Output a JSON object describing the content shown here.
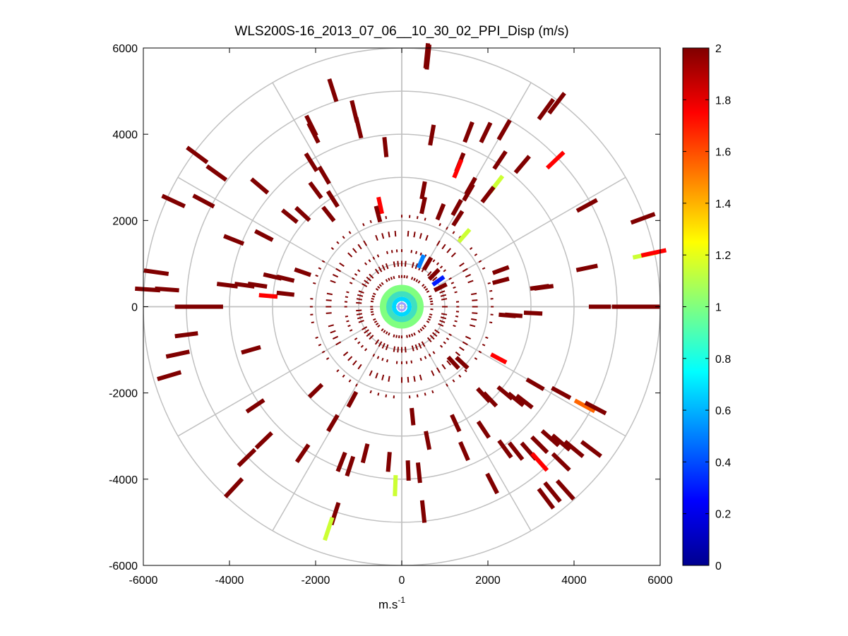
{
  "chart_data": {
    "type": "polar-scatter",
    "title": "WLS200S-16_2013_07_06__10_30_02_PPI_Disp (m/s)",
    "xlabel": "m.s",
    "xlabel_superscript": "-1",
    "ylabel": "",
    "xlim": [
      -6000,
      6000
    ],
    "ylim": [
      -6000,
      6000
    ],
    "xticks": [
      -6000,
      -4000,
      -2000,
      0,
      2000,
      4000,
      6000
    ],
    "yticks": [
      -6000,
      -4000,
      -2000,
      0,
      2000,
      4000,
      6000
    ],
    "xtick_labels": [
      "-6000",
      "-4000",
      "-2000",
      "0",
      "2000",
      "4000",
      "6000"
    ],
    "ytick_labels": [
      "-6000",
      "-4000",
      "-2000",
      "0",
      "2000",
      "4000",
      "6000"
    ],
    "polar_rings": [
      1000,
      2000,
      3000,
      4000,
      5000,
      6000
    ],
    "polar_spoke_angles_deg": [
      0,
      30,
      60,
      90,
      120,
      150,
      180,
      210,
      240,
      270,
      300,
      330
    ],
    "colorbar": {
      "colormap": "jet",
      "min": 0,
      "max": 2,
      "ticks": [
        0,
        0.2,
        0.4,
        0.6,
        0.8,
        1,
        1.2,
        1.4,
        1.6,
        1.8,
        2
      ],
      "tick_labels": [
        "0",
        "0.2",
        "0.4",
        "0.6",
        "0.8",
        "1",
        "1.2",
        "1.4",
        "1.6",
        "1.8",
        "2"
      ]
    },
    "points": [
      {
        "x": 580,
        "y": 5820,
        "v": 2
      },
      {
        "x": 610,
        "y": 5790,
        "v": 2
      },
      {
        "x": -1600,
        "y": 5020,
        "v": 2
      },
      {
        "x": -2100,
        "y": 4200,
        "v": 2
      },
      {
        "x": -2050,
        "y": 4030,
        "v": 2
      },
      {
        "x": -1100,
        "y": 4530,
        "v": 2
      },
      {
        "x": -1000,
        "y": 4150,
        "v": 2
      },
      {
        "x": -380,
        "y": 3700,
        "v": 2
      },
      {
        "x": 700,
        "y": 3980,
        "v": 2
      },
      {
        "x": 1550,
        "y": 4050,
        "v": 2
      },
      {
        "x": 1950,
        "y": 4040,
        "v": 2
      },
      {
        "x": 2380,
        "y": 4100,
        "v": 2
      },
      {
        "x": 3350,
        "y": 4580,
        "v": 2
      },
      {
        "x": 3600,
        "y": 4720,
        "v": 2
      },
      {
        "x": 3570,
        "y": 3400,
        "v": 1.75
      },
      {
        "x": 2800,
        "y": 3300,
        "v": 2
      },
      {
        "x": 2280,
        "y": 3400,
        "v": 2
      },
      {
        "x": 1350,
        "y": 3350,
        "v": 2
      },
      {
        "x": 1300,
        "y": 3200,
        "v": 1.75
      },
      {
        "x": 2200,
        "y": 2850,
        "v": 1.15
      },
      {
        "x": 1550,
        "y": 2650,
        "v": 2
      },
      {
        "x": 1600,
        "y": 2800,
        "v": 2
      },
      {
        "x": 2000,
        "y": 2600,
        "v": 2
      },
      {
        "x": -4750,
        "y": 3520,
        "v": 2
      },
      {
        "x": -4300,
        "y": 3100,
        "v": 2
      },
      {
        "x": -3300,
        "y": 2800,
        "v": 2
      },
      {
        "x": -2100,
        "y": 3350,
        "v": 2
      },
      {
        "x": -1800,
        "y": 3050,
        "v": 2
      },
      {
        "x": -5300,
        "y": 2450,
        "v": 2
      },
      {
        "x": -4600,
        "y": 2450,
        "v": 2
      },
      {
        "x": -3900,
        "y": 1550,
        "v": 2
      },
      {
        "x": -3200,
        "y": 1650,
        "v": 2
      },
      {
        "x": -2600,
        "y": 2100,
        "v": 2
      },
      {
        "x": -2300,
        "y": 2150,
        "v": 2
      },
      {
        "x": -2000,
        "y": 2700,
        "v": 2
      },
      {
        "x": -1600,
        "y": 2500,
        "v": 2
      },
      {
        "x": -1700,
        "y": 2150,
        "v": 2
      },
      {
        "x": -500,
        "y": 2350,
        "v": 1.75
      },
      {
        "x": -550,
        "y": 2150,
        "v": 2
      },
      {
        "x": 500,
        "y": 2700,
        "v": 2
      },
      {
        "x": 500,
        "y": 2350,
        "v": 2
      },
      {
        "x": 900,
        "y": 2200,
        "v": 2
      },
      {
        "x": 1280,
        "y": 2300,
        "v": 2
      },
      {
        "x": 1300,
        "y": 2050,
        "v": 2
      },
      {
        "x": 1450,
        "y": 1650,
        "v": 1.15
      },
      {
        "x": 4300,
        "y": 2350,
        "v": 2
      },
      {
        "x": 5600,
        "y": 2050,
        "v": 2
      },
      {
        "x": 5650,
        "y": 1200,
        "v": 1.15
      },
      {
        "x": 5850,
        "y": 1250,
        "v": 1.75
      },
      {
        "x": -5700,
        "y": 800,
        "v": 2
      },
      {
        "x": -5900,
        "y": 400,
        "v": 2
      },
      {
        "x": -5450,
        "y": 400,
        "v": 2
      },
      {
        "x": -4050,
        "y": 500,
        "v": 2
      },
      {
        "x": -3650,
        "y": 500,
        "v": 2
      },
      {
        "x": -3350,
        "y": 500,
        "v": 2
      },
      {
        "x": -3000,
        "y": 700,
        "v": 2
      },
      {
        "x": -3100,
        "y": 250,
        "v": 1.75
      },
      {
        "x": -2700,
        "y": 650,
        "v": 2
      },
      {
        "x": -2700,
        "y": 300,
        "v": 2
      },
      {
        "x": -2300,
        "y": 800,
        "v": 2
      },
      {
        "x": -5000,
        "y": 0,
        "v": 2
      },
      {
        "x": -4650,
        "y": 0,
        "v": 2
      },
      {
        "x": -4400,
        "y": 0,
        "v": 2
      },
      {
        "x": 2300,
        "y": 600,
        "v": 2
      },
      {
        "x": 2300,
        "y": 850,
        "v": 2
      },
      {
        "x": 3200,
        "y": 450,
        "v": 2
      },
      {
        "x": 3300,
        "y": 450,
        "v": 2
      },
      {
        "x": 4300,
        "y": 900,
        "v": 2
      },
      {
        "x": 4600,
        "y": 0,
        "v": 2
      },
      {
        "x": 5150,
        "y": 0,
        "v": 2
      },
      {
        "x": 5700,
        "y": 0,
        "v": 2
      },
      {
        "x": 2450,
        "y": -200,
        "v": 2
      },
      {
        "x": 2600,
        "y": -200,
        "v": 2
      },
      {
        "x": 3050,
        "y": -150,
        "v": 2
      },
      {
        "x": -5400,
        "y": -1600,
        "v": 2
      },
      {
        "x": -5000,
        "y": -650,
        "v": 2
      },
      {
        "x": -5200,
        "y": -1100,
        "v": 2
      },
      {
        "x": -3500,
        "y": -1000,
        "v": 2
      },
      {
        "x": -2000,
        "y": -1950,
        "v": 2
      },
      {
        "x": -1150,
        "y": -2150,
        "v": 2
      },
      {
        "x": -3400,
        "y": -2300,
        "v": 2
      },
      {
        "x": -3200,
        "y": -3100,
        "v": 2
      },
      {
        "x": -3600,
        "y": -3500,
        "v": 2
      },
      {
        "x": -2300,
        "y": -3400,
        "v": 2
      },
      {
        "x": -3900,
        "y": -4200,
        "v": 2
      },
      {
        "x": -1600,
        "y": -2700,
        "v": 2
      },
      {
        "x": -1400,
        "y": -3600,
        "v": 2
      },
      {
        "x": -1200,
        "y": -3700,
        "v": 2
      },
      {
        "x": -850,
        "y": -3400,
        "v": 2
      },
      {
        "x": -300,
        "y": -3600,
        "v": 2
      },
      {
        "x": 150,
        "y": -3800,
        "v": 2
      },
      {
        "x": 400,
        "y": -3850,
        "v": 2
      },
      {
        "x": 250,
        "y": -2550,
        "v": 2
      },
      {
        "x": 600,
        "y": -3100,
        "v": 2
      },
      {
        "x": 1250,
        "y": -2700,
        "v": 2
      },
      {
        "x": 1450,
        "y": -3350,
        "v": 2
      },
      {
        "x": 1900,
        "y": -2850,
        "v": 2
      },
      {
        "x": 2100,
        "y": -4100,
        "v": 2
      },
      {
        "x": -150,
        "y": -4150,
        "v": 1.15
      },
      {
        "x": -1550,
        "y": -4800,
        "v": 2
      },
      {
        "x": -1700,
        "y": -5150,
        "v": 1.15
      },
      {
        "x": 500,
        "y": -4750,
        "v": 2
      },
      {
        "x": 1900,
        "y": -2050,
        "v": 2
      },
      {
        "x": 2050,
        "y": -2150,
        "v": 2
      },
      {
        "x": 2400,
        "y": -2000,
        "v": 2
      },
      {
        "x": 2650,
        "y": -2150,
        "v": 2
      },
      {
        "x": 2850,
        "y": -2200,
        "v": 2
      },
      {
        "x": 3100,
        "y": -1800,
        "v": 2
      },
      {
        "x": 2400,
        "y": -3300,
        "v": 2
      },
      {
        "x": 2650,
        "y": -3350,
        "v": 2
      },
      {
        "x": 2950,
        "y": -3350,
        "v": 2
      },
      {
        "x": 3200,
        "y": -3200,
        "v": 2
      },
      {
        "x": 3450,
        "y": -3050,
        "v": 2
      },
      {
        "x": 3700,
        "y": -3150,
        "v": 2
      },
      {
        "x": 3700,
        "y": -3600,
        "v": 2
      },
      {
        "x": 4000,
        "y": -3300,
        "v": 2
      },
      {
        "x": 4400,
        "y": -3300,
        "v": 2
      },
      {
        "x": 3200,
        "y": -3600,
        "v": 1.75
      },
      {
        "x": 3500,
        "y": -4300,
        "v": 2
      },
      {
        "x": 3800,
        "y": -4250,
        "v": 2
      },
      {
        "x": 3350,
        "y": -4450,
        "v": 2
      },
      {
        "x": 3700,
        "y": -2000,
        "v": 2
      },
      {
        "x": 4250,
        "y": -2300,
        "v": 1.55
      },
      {
        "x": 4500,
        "y": -2350,
        "v": 2
      },
      {
        "x": 2250,
        "y": -1200,
        "v": 1.75
      },
      {
        "x": 1400,
        "y": -1300,
        "v": 2
      },
      {
        "x": 1200,
        "y": -1300,
        "v": 2
      },
      {
        "x": 600,
        "y": 1000,
        "v": 2
      },
      {
        "x": 450,
        "y": 1050,
        "v": 0.5
      },
      {
        "x": 750,
        "y": 750,
        "v": 2
      },
      {
        "x": 850,
        "y": 600,
        "v": 0.3
      },
      {
        "x": 900,
        "y": 450,
        "v": 2
      }
    ]
  }
}
